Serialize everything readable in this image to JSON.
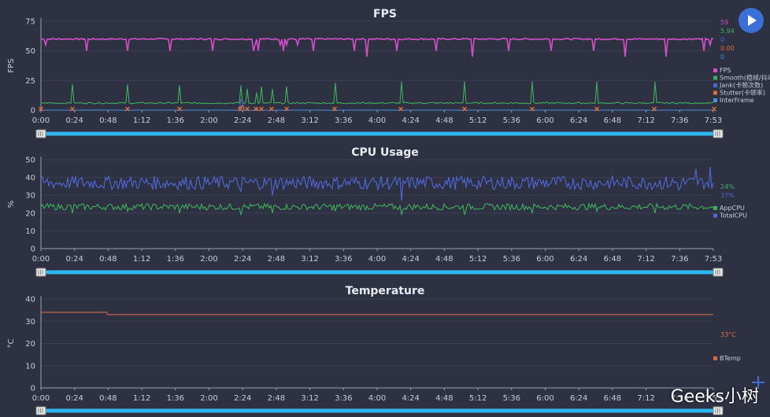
{
  "watermark": "Geeks小树",
  "controls": {
    "play_icon": "play-icon"
  },
  "chart_data": [
    {
      "type": "line",
      "title": "FPS",
      "ylabel": "FPS",
      "xlabel": "",
      "ylim": [
        0,
        75
      ],
      "yticks": [
        "0",
        "25",
        "50",
        "75"
      ],
      "categories": [
        "0:00",
        "0:24",
        "0:48",
        "1:12",
        "1:36",
        "2:00",
        "2:24",
        "2:48",
        "3:12",
        "3:36",
        "4:00",
        "4:24",
        "4:48",
        "5:12",
        "5:36",
        "6:00",
        "6:24",
        "6:48",
        "7:12",
        "7:36",
        "7:53"
      ],
      "x_range_seconds": [
        0,
        473
      ],
      "series": [
        {
          "name": "FPS",
          "color": "#d24fc8",
          "base": 60,
          "dips": [
            [
              5,
              55
            ],
            [
              57,
              50
            ],
            [
              110,
              50
            ],
            [
              164,
              50
            ],
            [
              218,
              50
            ],
            [
              270,
              50
            ],
            [
              272,
              55
            ],
            [
              275,
              50
            ],
            [
              303,
              55
            ],
            [
              307,
              50
            ],
            [
              311,
              55
            ],
            [
              325,
              55
            ],
            [
              345,
              50
            ],
            [
              397,
              50
            ],
            [
              413,
              45
            ],
            [
              452,
              50
            ],
            [
              502,
              50
            ],
            [
              547,
              45
            ],
            [
              594,
              50
            ],
            [
              647,
              50
            ],
            [
              701,
              50
            ],
            [
              741,
              45
            ],
            [
              793,
              45
            ],
            [
              841,
              50
            ],
            [
              849,
              55
            ],
            [
              868,
              55
            ],
            [
              875,
              55
            ]
          ]
        },
        {
          "name": "Smooth(稳帧/抖动)",
          "color": "#3fae5a",
          "base": 6,
          "dips": [
            [
              40,
              22
            ],
            [
              110,
              22
            ],
            [
              176,
              21
            ],
            [
              253,
              21
            ],
            [
              262,
              18
            ],
            [
              273,
              15
            ],
            [
              280,
              20
            ],
            [
              293,
              18
            ],
            [
              312,
              20
            ],
            [
              373,
              23
            ],
            [
              457,
              24
            ],
            [
              538,
              24
            ],
            [
              624,
              24
            ],
            [
              706,
              24
            ],
            [
              779,
              24
            ],
            [
              855,
              23
            ],
            [
              860,
              15
            ],
            [
              865,
              14
            ]
          ]
        },
        {
          "name": "Jank(卡顿次数)",
          "color": "#5068d6",
          "base": 0,
          "dips": [
            [
              253,
              9
            ],
            [
              256,
              8
            ],
            [
              862,
              4
            ],
            [
              866,
              4
            ]
          ]
        },
        {
          "name": "Stutter(卡顿率)",
          "color": "#e0703a",
          "base": 0,
          "dips": [
            [
              253,
              3
            ],
            [
              256,
              4
            ],
            [
              273,
              2
            ]
          ]
        },
        {
          "name": "InterFrame",
          "color": "#4a8ee0",
          "base": 0,
          "dips": []
        }
      ],
      "markers": [
        0,
        40,
        110,
        176,
        253,
        262,
        273,
        280,
        293,
        312,
        373,
        457,
        538,
        624,
        706,
        779,
        855
      ],
      "current_values": [
        {
          "text": "59",
          "color": "#d24fc8"
        },
        {
          "text": "5.94",
          "color": "#3fae5a"
        },
        {
          "text": "0",
          "color": "#5068d6"
        },
        {
          "text": "0.00",
          "color": "#e0703a"
        },
        {
          "text": "0",
          "color": "#4a8ee0"
        }
      ]
    },
    {
      "type": "line",
      "title": "CPU Usage",
      "ylabel": "%",
      "xlabel": "",
      "ylim": [
        0,
        50
      ],
      "yticks": [
        "0",
        "10",
        "20",
        "30",
        "40",
        "50"
      ],
      "categories": [
        "0:00",
        "0:24",
        "0:48",
        "1:12",
        "1:36",
        "2:00",
        "2:24",
        "2:48",
        "3:12",
        "3:36",
        "4:00",
        "4:24",
        "4:48",
        "5:12",
        "5:36",
        "6:00",
        "6:24",
        "6:48",
        "7:12",
        "7:36",
        "7:53"
      ],
      "x_range_seconds": [
        0,
        473
      ],
      "series": [
        {
          "name": "AppCPU",
          "color": "#3fae5a",
          "base": 23.5,
          "amp": 1.8,
          "dips": [
            [
              40,
              20
            ],
            [
              110,
              21
            ],
            [
              176,
              20
            ],
            [
              253,
              19
            ],
            [
              293,
              20
            ],
            [
              373,
              21
            ],
            [
              457,
              19
            ],
            [
              538,
              19
            ],
            [
              624,
              20
            ],
            [
              706,
              21
            ],
            [
              779,
              20
            ],
            [
              855,
              20
            ]
          ]
        },
        {
          "name": "TotalCPU",
          "color": "#5068d6",
          "base": 37,
          "amp": 3.8,
          "dips": [
            [
              253,
              32
            ],
            [
              293,
              30
            ],
            [
              457,
              27
            ],
            [
              810,
              33
            ],
            [
              832,
              45
            ],
            [
              850,
              46
            ],
            [
              855,
              40
            ]
          ]
        }
      ],
      "current_values": [
        {
          "text": "24%",
          "color": "#3fae5a"
        },
        {
          "text": "37%",
          "color": "#5068d6"
        }
      ]
    },
    {
      "type": "line",
      "title": "Temperature",
      "ylabel": "°C",
      "xlabel": "",
      "ylim": [
        0,
        40
      ],
      "yticks": [
        "0",
        "10",
        "20",
        "30",
        "40"
      ],
      "categories": [
        "0:00",
        "0:24",
        "0:48",
        "1:12",
        "1:36",
        "2:00",
        "2:24",
        "2:48",
        "3:12",
        "3:36",
        "4:00",
        "4:24",
        "4:48",
        "5:12",
        "5:36",
        "6:00",
        "6:24",
        "6:48",
        "7:12",
        "7:36",
        "7:53"
      ],
      "x_range_seconds": [
        0,
        473
      ],
      "series": [
        {
          "name": "BTemp",
          "color": "#d0674a",
          "points": [
            [
              0,
              34
            ],
            [
              46,
              34
            ],
            [
              47,
              33
            ],
            [
              473,
              33
            ]
          ]
        }
      ],
      "current_values": [
        {
          "text": "33°C",
          "color": "#e0703a"
        }
      ]
    }
  ]
}
